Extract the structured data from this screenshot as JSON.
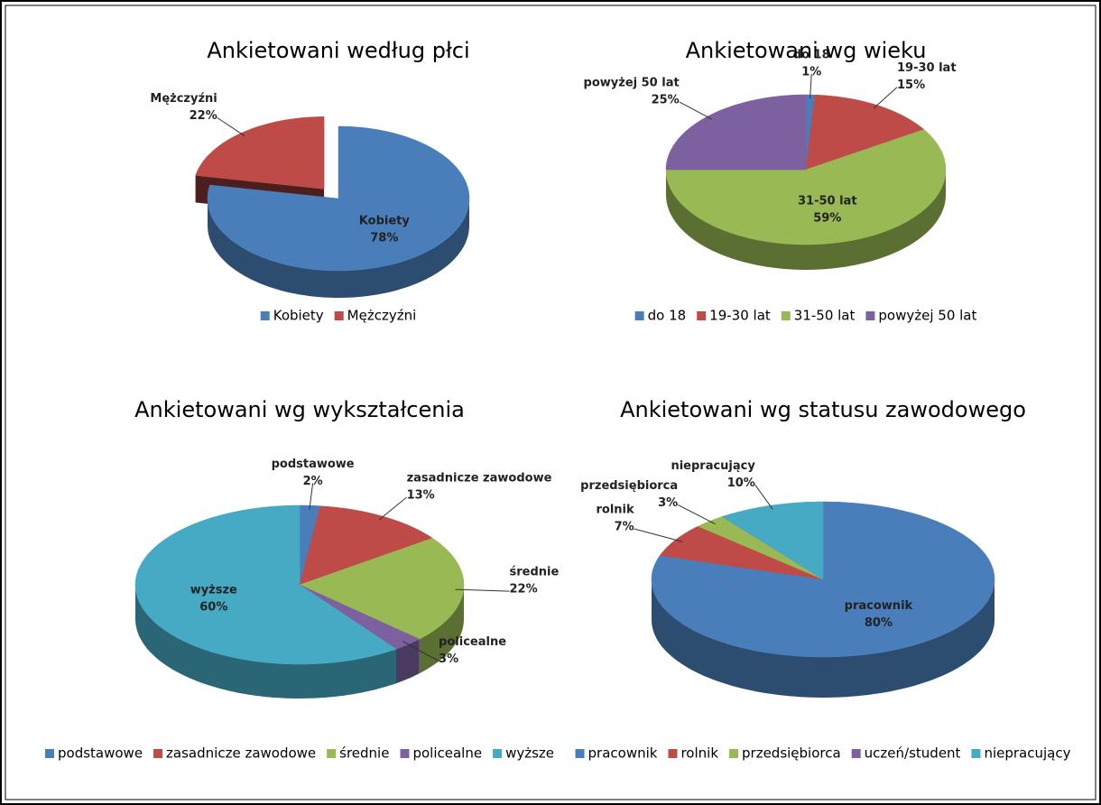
{
  "chart_data": [
    {
      "type": "pie",
      "title": "Ankietowani według płci",
      "categories": [
        "Kobiety",
        "Mężczyźni"
      ],
      "values": [
        78,
        22
      ],
      "value_labels": [
        "78%",
        "22%"
      ],
      "colors": [
        "#4a7ebb",
        "#be4b48"
      ],
      "exploded": "Mężczyźni",
      "legend": "bottom"
    },
    {
      "type": "pie",
      "title": "Ankietowani wg wieku",
      "categories": [
        "do 18",
        "19-30 lat",
        "31-50 lat",
        "powyżej 50 lat"
      ],
      "values": [
        1,
        15,
        59,
        25
      ],
      "value_labels": [
        "1%",
        "15%",
        "59%",
        "25%"
      ],
      "colors": [
        "#4a7ebb",
        "#be4b48",
        "#98b954",
        "#7d60a0"
      ],
      "legend": "bottom"
    },
    {
      "type": "pie",
      "title": "Ankietowani wg wykształcenia",
      "categories": [
        "podstawowe",
        "zasadnicze zawodowe",
        "średnie",
        "policealne",
        "wyższe"
      ],
      "values": [
        2,
        13,
        22,
        3,
        60
      ],
      "value_labels": [
        "2%",
        "13%",
        "22%",
        "3%",
        "60%"
      ],
      "colors": [
        "#4a7ebb",
        "#be4b48",
        "#98b954",
        "#7d60a0",
        "#46aac5"
      ],
      "legend": "bottom"
    },
    {
      "type": "pie",
      "title": "Ankietowani wg statusu zawodowego",
      "categories": [
        "pracownik",
        "rolnik",
        "przedsiębiorca",
        "uczeń/student",
        "niepracujący"
      ],
      "values": [
        80,
        7,
        3,
        0,
        10
      ],
      "value_labels": [
        "80%",
        "7%",
        "3%",
        null,
        "10%"
      ],
      "colors": [
        "#4a7ebb",
        "#be4b48",
        "#98b954",
        "#7d60a0",
        "#46aac5"
      ],
      "legend": "bottom"
    }
  ]
}
